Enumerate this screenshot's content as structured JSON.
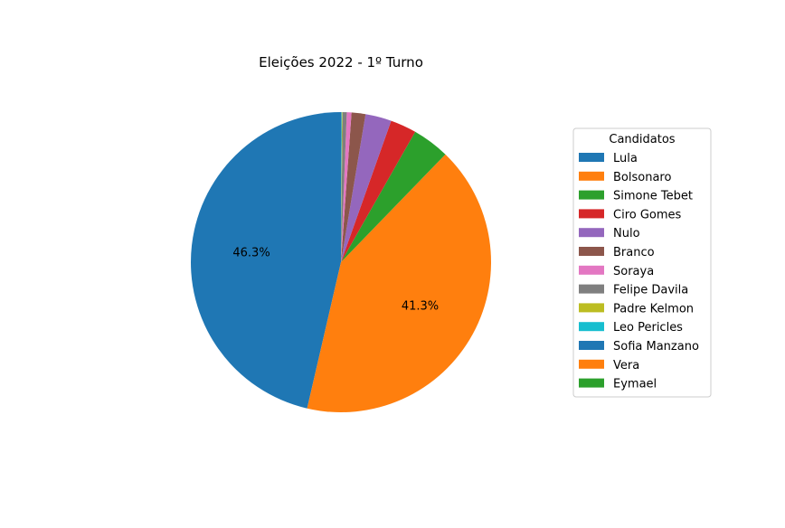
{
  "chart_data": {
    "type": "pie",
    "title": "Eleições 2022 - 1º Turno",
    "legend_title": "Candidatos",
    "legend_position": "right",
    "start_angle_deg": 90,
    "direction": "counterclockwise",
    "slices": [
      {
        "name": "Lula",
        "value": 46.3,
        "label": "46.3%",
        "color": "#1f77b4"
      },
      {
        "name": "Bolsonaro",
        "value": 41.3,
        "label": "41.3%",
        "color": "#ff7f0e"
      },
      {
        "name": "Simone Tebet",
        "value": 4.0,
        "label": "",
        "color": "#2ca02c"
      },
      {
        "name": "Ciro Gomes",
        "value": 2.8,
        "label": "",
        "color": "#d62728"
      },
      {
        "name": "Nulo",
        "value": 2.8,
        "label": "",
        "color": "#9467bd"
      },
      {
        "name": "Branco",
        "value": 1.5,
        "label": "",
        "color": "#8c564b"
      },
      {
        "name": "Soraya",
        "value": 0.5,
        "label": "",
        "color": "#e377c2"
      },
      {
        "name": "Felipe Davila",
        "value": 0.45,
        "label": "",
        "color": "#7f7f7f"
      },
      {
        "name": "Padre Kelmon",
        "value": 0.06,
        "label": "",
        "color": "#bcbd22"
      },
      {
        "name": "Leo Pericles",
        "value": 0.05,
        "label": "",
        "color": "#17becf"
      },
      {
        "name": "Sofia Manzano",
        "value": 0.04,
        "label": "",
        "color": "#1f77b4"
      },
      {
        "name": "Vera",
        "value": 0.01,
        "label": "",
        "color": "#ff7f0e"
      },
      {
        "name": "Eymael",
        "value": 0.01,
        "label": "",
        "color": "#2ca02c"
      }
    ]
  }
}
